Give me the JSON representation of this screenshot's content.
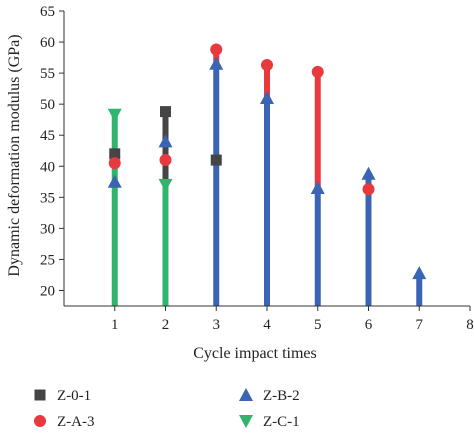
{
  "chart_data": {
    "type": "range",
    "xlabel": "Cycle impact times",
    "ylabel": "Dynamic deformation modulus (GPa)",
    "xlim": [
      0,
      8
    ],
    "ylim": [
      17.5,
      65
    ],
    "x_ticks": [
      1,
      2,
      3,
      4,
      5,
      6,
      7,
      8
    ],
    "y_ticks": [
      20,
      25,
      30,
      35,
      40,
      45,
      50,
      55,
      60,
      65
    ],
    "grid": false,
    "legend_placement": "bottom",
    "series": [
      {
        "name": "Z-0-1",
        "marker": "square",
        "color": "#454545",
        "points": [
          {
            "x": 1,
            "y": 42.0
          },
          {
            "x": 2,
            "y": 48.8
          },
          {
            "x": 3,
            "y": 41.0
          }
        ]
      },
      {
        "name": "Z-A-3",
        "marker": "circle",
        "color": "#e8393f",
        "points": [
          {
            "x": 1,
            "y": 40.5
          },
          {
            "x": 2,
            "y": 41.0
          },
          {
            "x": 3,
            "y": 58.8
          },
          {
            "x": 4,
            "y": 56.3
          },
          {
            "x": 5,
            "y": 55.2
          },
          {
            "x": 6,
            "y": 36.3
          }
        ]
      },
      {
        "name": "Z-B-2",
        "marker": "triangle-up",
        "color": "#3a64b4",
        "points": [
          {
            "x": 1,
            "y": 37.5
          },
          {
            "x": 2,
            "y": 44.0
          },
          {
            "x": 3,
            "y": 56.5
          },
          {
            "x": 4,
            "y": 51.0
          },
          {
            "x": 5,
            "y": 36.5
          },
          {
            "x": 6,
            "y": 38.8
          },
          {
            "x": 7,
            "y": 22.8
          }
        ]
      },
      {
        "name": "Z-C-1",
        "marker": "triangle-down",
        "color": "#2fb56e",
        "points": [
          {
            "x": 1,
            "y": 48.3
          },
          {
            "x": 2,
            "y": 37.0
          }
        ]
      }
    ],
    "bars": [
      {
        "x": 1,
        "from": 17.5,
        "to": 48.3,
        "color": "#2fb56e"
      },
      {
        "x": 2,
        "from": 17.5,
        "to": 37.0,
        "color": "#2fb56e"
      },
      {
        "x": 2,
        "from": 37.0,
        "to": 48.8,
        "color": "#454545"
      },
      {
        "x": 3,
        "from": 17.5,
        "to": 56.5,
        "color": "#3a64b4"
      },
      {
        "x": 3,
        "from": 56.5,
        "to": 58.8,
        "color": "#e8393f"
      },
      {
        "x": 4,
        "from": 17.5,
        "to": 51.0,
        "color": "#3a64b4"
      },
      {
        "x": 4,
        "from": 51.0,
        "to": 56.3,
        "color": "#e8393f"
      },
      {
        "x": 5,
        "from": 17.5,
        "to": 36.5,
        "color": "#3a64b4"
      },
      {
        "x": 5,
        "from": 36.5,
        "to": 55.2,
        "color": "#e8393f"
      },
      {
        "x": 6,
        "from": 17.5,
        "to": 38.8,
        "color": "#3a64b4"
      },
      {
        "x": 7,
        "from": 17.5,
        "to": 22.8,
        "color": "#3a64b4"
      }
    ],
    "legend": [
      {
        "label": "Z-0-1",
        "marker": "square",
        "color": "#454545"
      },
      {
        "label": "Z-B-2",
        "marker": "triangle-up",
        "color": "#3a64b4"
      },
      {
        "label": "Z-A-3",
        "marker": "circle",
        "color": "#e8393f"
      },
      {
        "label": "Z-C-1",
        "marker": "triangle-down",
        "color": "#2fb56e"
      }
    ]
  }
}
